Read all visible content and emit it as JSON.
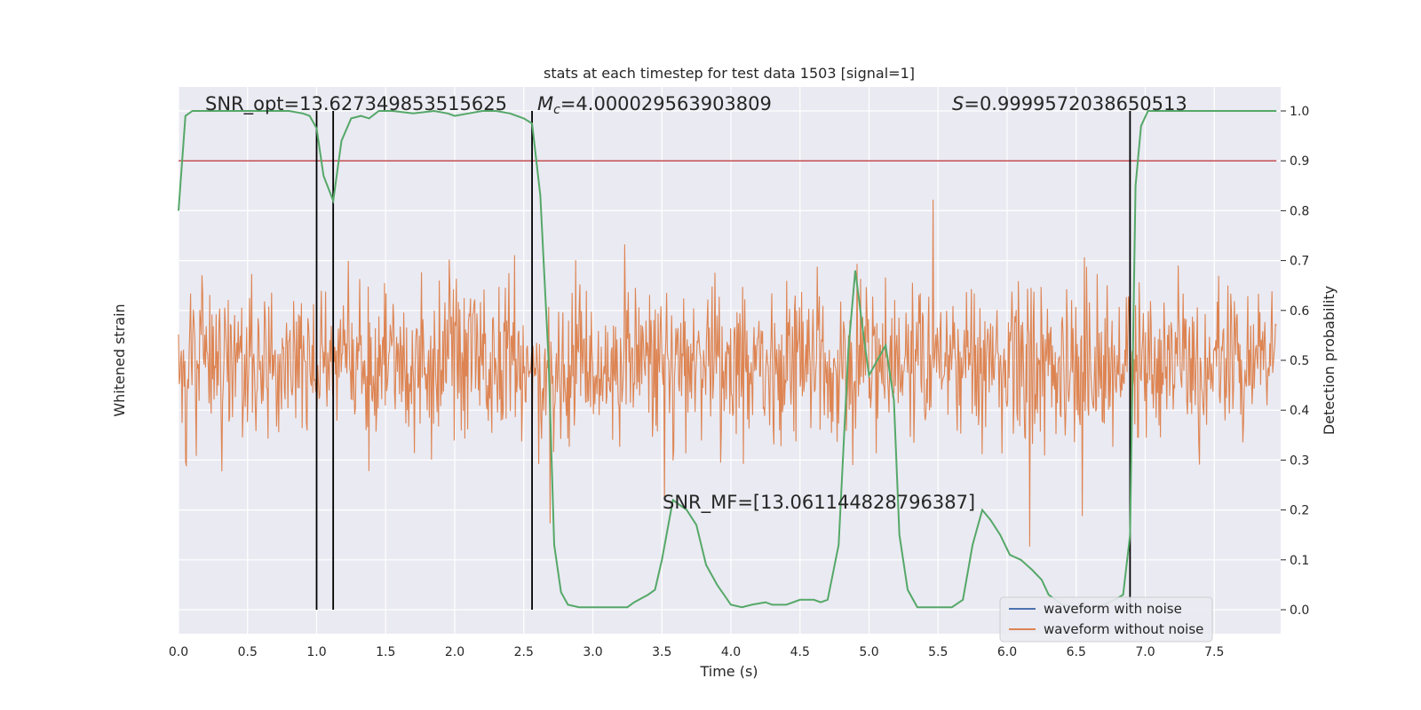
{
  "chart_data": {
    "type": "line",
    "title": "stats at each timestep for test data 1503 [signal=1]",
    "xlabel": "Time (s)",
    "ylabel_left": "Whitened strain",
    "ylabel_right": "Detection probability",
    "xlim": [
      0,
      8
    ],
    "ylim_right": [
      -0.05,
      1.05
    ],
    "x_ticks": [
      "0.0",
      "0.5",
      "1.0",
      "1.5",
      "2.0",
      "2.5",
      "3.0",
      "3.5",
      "4.0",
      "4.5",
      "5.0",
      "5.5",
      "6.0",
      "6.5",
      "7.0",
      "7.5"
    ],
    "y_ticks_right": [
      "0.0",
      "0.1",
      "0.2",
      "0.3",
      "0.4",
      "0.5",
      "0.6",
      "0.7",
      "0.8",
      "0.9",
      "1.0"
    ],
    "grid": true,
    "threshold": 0.9,
    "event_times": [
      1.0,
      1.12,
      2.56,
      6.89
    ],
    "annotations": {
      "snr_opt": "SNR_opt=13.627349853515625",
      "mc_symbol": "M",
      "mc_sub": "c",
      "mc_value": "=4.000029563903809",
      "s_symbol": "S",
      "s_value": "=0.9999572038650513",
      "snr_mf": "SNR_MF=[13.061144828796387]"
    },
    "legend": {
      "position": "lower-right",
      "entries": [
        "waveform with noise",
        "waveform without noise"
      ]
    },
    "series": [
      {
        "name": "Detection probability",
        "color": "#55a868",
        "x": [
          0.0,
          0.05,
          0.1,
          0.2,
          0.3,
          0.4,
          0.5,
          0.6,
          0.7,
          0.8,
          0.9,
          0.95,
          1.0,
          1.05,
          1.12,
          1.18,
          1.25,
          1.32,
          1.38,
          1.45,
          1.55,
          1.7,
          1.85,
          1.95,
          2.0,
          2.1,
          2.2,
          2.3,
          2.4,
          2.5,
          2.56,
          2.62,
          2.68,
          2.72,
          2.77,
          2.82,
          2.9,
          3.0,
          3.1,
          3.2,
          3.25,
          3.3,
          3.4,
          3.45,
          3.5,
          3.58,
          3.68,
          3.75,
          3.82,
          3.9,
          4.0,
          4.08,
          4.15,
          4.25,
          4.3,
          4.4,
          4.5,
          4.6,
          4.65,
          4.7,
          4.78,
          4.85,
          4.9,
          4.96,
          5.0,
          5.06,
          5.12,
          5.18,
          5.22,
          5.28,
          5.35,
          5.4,
          5.5,
          5.6,
          5.68,
          5.75,
          5.82,
          5.88,
          5.95,
          6.02,
          6.1,
          6.18,
          6.25,
          6.3,
          6.4,
          6.5,
          6.6,
          6.7,
          6.78,
          6.84,
          6.89,
          6.93,
          6.97,
          7.02,
          7.2,
          7.5,
          7.95
        ],
        "y": [
          0.8,
          0.99,
          1.0,
          1.0,
          1.0,
          1.0,
          1.0,
          1.0,
          1.0,
          1.0,
          0.995,
          0.99,
          0.965,
          0.87,
          0.82,
          0.94,
          0.985,
          0.99,
          0.985,
          1.0,
          1.0,
          0.995,
          1.0,
          0.995,
          0.99,
          0.995,
          1.0,
          1.0,
          0.995,
          0.985,
          0.975,
          0.83,
          0.5,
          0.13,
          0.035,
          0.01,
          0.005,
          0.005,
          0.005,
          0.005,
          0.005,
          0.015,
          0.03,
          0.04,
          0.1,
          0.22,
          0.2,
          0.17,
          0.09,
          0.05,
          0.01,
          0.005,
          0.01,
          0.015,
          0.01,
          0.01,
          0.02,
          0.02,
          0.015,
          0.02,
          0.13,
          0.52,
          0.68,
          0.55,
          0.47,
          0.5,
          0.53,
          0.42,
          0.15,
          0.04,
          0.005,
          0.005,
          0.005,
          0.005,
          0.02,
          0.13,
          0.2,
          0.18,
          0.15,
          0.11,
          0.1,
          0.08,
          0.06,
          0.03,
          0.01,
          0.005,
          0.005,
          0.01,
          0.02,
          0.03,
          0.15,
          0.85,
          0.97,
          1.0,
          1.0,
          1.0,
          1.0
        ]
      },
      {
        "name": "waveform without noise",
        "color": "#dd8452"
      },
      {
        "name": "waveform with noise",
        "color": "#4c72b0"
      }
    ]
  },
  "colors": {
    "plot_bg": "#eaeaf2",
    "grid": "#ffffff",
    "threshold_line": "#c44e52",
    "event_line": "#000000"
  }
}
